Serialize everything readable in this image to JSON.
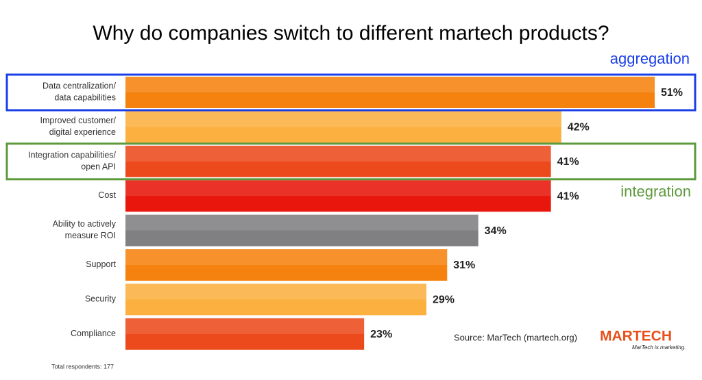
{
  "chart_data": {
    "type": "hbar",
    "title": "Why do companies switch to different martech products?",
    "categories": [
      "Data centralization/\ndata capabilities",
      "Improved customer/\ndigital experience",
      "Integration capabilities/\nopen API",
      "Cost",
      "Ability to actively\nmeasure ROI",
      "Support",
      "Security",
      "Compliance"
    ],
    "values": [
      51,
      42,
      41,
      41,
      34,
      31,
      29,
      23
    ],
    "value_labels": [
      "51%",
      "42%",
      "41%",
      "41%",
      "34%",
      "31%",
      "29%",
      "23%"
    ],
    "colors": [
      "#f5820f",
      "#fbb040",
      "#ec4a1c",
      "#e8160c",
      "#808082",
      "#f5820f",
      "#fbb040",
      "#ec4a1c"
    ],
    "annotations": [
      {
        "text": "aggregation",
        "color": "#1a3ee8"
      },
      {
        "text": "integration",
        "color": "#5c9a3c"
      }
    ],
    "source": "Source: MarTech (martech.org)",
    "note": "Total respondents: 177",
    "logo": "MARTECH",
    "tagline": "MarTech is marketing."
  }
}
